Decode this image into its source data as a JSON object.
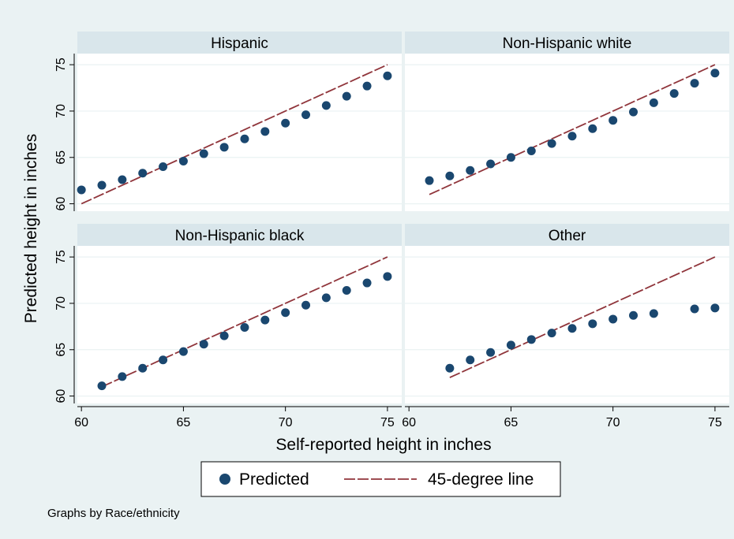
{
  "chart_data": {
    "type": "scatter",
    "layout": "2x2 facets",
    "xlabel": "Self-reported height in inches",
    "ylabel": "Predicted height in inches",
    "xlim": [
      59.8,
      75.7
    ],
    "ylim": [
      59.2,
      76.2
    ],
    "x_ticks": [
      60,
      65,
      70,
      75
    ],
    "y_ticks": [
      60,
      65,
      70,
      75
    ],
    "grid": true,
    "legend": {
      "position": "bottom",
      "items": [
        {
          "label": "Predicted",
          "marker": "circle",
          "color": "#1a476f"
        },
        {
          "label": "45-degree line",
          "marker": "dashed-line",
          "color": "#90353b"
        }
      ]
    },
    "note": "Graphs by Race/ethnicity",
    "colors": {
      "background": "#eaf2f3",
      "plot_bg": "#ffffff",
      "strip_bg": "#d9e6eb",
      "grid": "#eaf2f3",
      "points": "#1a476f",
      "line": "#90353b"
    },
    "panels": [
      {
        "title": "Hispanic",
        "points": [
          [
            60,
            61.5
          ],
          [
            61,
            62.0
          ],
          [
            62,
            62.6
          ],
          [
            63,
            63.3
          ],
          [
            64,
            64.0
          ],
          [
            65,
            64.6
          ],
          [
            66,
            65.4
          ],
          [
            67,
            66.1
          ],
          [
            68,
            67.0
          ],
          [
            69,
            67.8
          ],
          [
            70,
            68.7
          ],
          [
            71,
            69.6
          ],
          [
            72,
            70.6
          ],
          [
            73,
            71.6
          ],
          [
            74,
            72.7
          ],
          [
            75,
            73.8
          ]
        ],
        "line": [
          [
            60,
            60
          ],
          [
            75,
            75
          ]
        ]
      },
      {
        "title": "Non-Hispanic white",
        "points": [
          [
            61,
            62.5
          ],
          [
            62,
            63.0
          ],
          [
            63,
            63.6
          ],
          [
            64,
            64.3
          ],
          [
            65,
            65.0
          ],
          [
            66,
            65.7
          ],
          [
            67,
            66.5
          ],
          [
            68,
            67.3
          ],
          [
            69,
            68.1
          ],
          [
            70,
            69.0
          ],
          [
            71,
            69.9
          ],
          [
            72,
            70.9
          ],
          [
            73,
            71.9
          ],
          [
            74,
            73.0
          ],
          [
            75,
            74.1
          ]
        ],
        "line": [
          [
            61,
            61
          ],
          [
            75,
            75
          ]
        ]
      },
      {
        "title": "Non-Hispanic black",
        "points": [
          [
            61,
            61.1
          ],
          [
            62,
            62.1
          ],
          [
            63,
            63.0
          ],
          [
            64,
            63.9
          ],
          [
            65,
            64.8
          ],
          [
            66,
            65.6
          ],
          [
            67,
            66.5
          ],
          [
            68,
            67.4
          ],
          [
            69,
            68.2
          ],
          [
            70,
            69.0
          ],
          [
            71,
            69.8
          ],
          [
            72,
            70.6
          ],
          [
            73,
            71.4
          ],
          [
            74,
            72.2
          ],
          [
            75,
            72.9
          ]
        ],
        "line": [
          [
            61,
            61
          ],
          [
            75,
            75
          ]
        ]
      },
      {
        "title": "Other",
        "points": [
          [
            62,
            63.0
          ],
          [
            63,
            63.9
          ],
          [
            64,
            64.7
          ],
          [
            65,
            65.5
          ],
          [
            66,
            66.1
          ],
          [
            67,
            66.8
          ],
          [
            68,
            67.3
          ],
          [
            69,
            67.8
          ],
          [
            70,
            68.3
          ],
          [
            71,
            68.7
          ],
          [
            72,
            68.9
          ],
          [
            74,
            69.4
          ],
          [
            75,
            69.5
          ]
        ],
        "line": [
          [
            62,
            62
          ],
          [
            75,
            75
          ]
        ]
      }
    ]
  }
}
